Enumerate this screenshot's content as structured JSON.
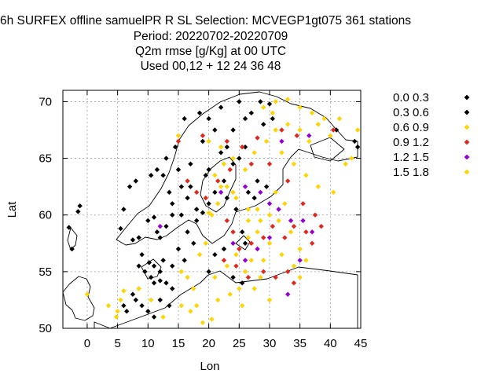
{
  "title": {
    "line1": "6h SURFEX offline samuelPR R SL   Selection: MCVEGP1gt075    361 stations",
    "line2": "Period: 20220702-20220709",
    "line3": "Q2m rmse [g/Kg] at  00 UTC",
    "line4": "Used  00,12  + 12 24 36 48"
  },
  "chart_data": {
    "type": "scatter",
    "xlabel": "Lon",
    "ylabel": "Lat",
    "xlim": [
      -4,
      45
    ],
    "ylim": [
      50,
      71
    ],
    "xticks": [
      0,
      5,
      10,
      15,
      20,
      25,
      30,
      35,
      40,
      45
    ],
    "yticks": [
      50,
      55,
      60,
      65,
      70
    ],
    "grid": true,
    "legend_position": "top-right",
    "series": [
      {
        "name": "0.0 0.3",
        "color": "#000000",
        "points": [
          [
            -3.0,
            58.9
          ],
          [
            -1.5,
            60.3
          ],
          [
            -1.2,
            60.8
          ],
          [
            -2.5,
            57.0
          ],
          [
            5.5,
            58.8
          ],
          [
            6.0,
            60.5
          ],
          [
            7.0,
            62.5
          ],
          [
            8.0,
            63.0
          ],
          [
            10.5,
            63.5
          ],
          [
            11.5,
            64.0
          ],
          [
            13.0,
            65.0
          ],
          [
            14.5,
            66.0
          ],
          [
            16.0,
            68.5
          ],
          [
            18.5,
            69.0
          ],
          [
            20.0,
            68.5
          ],
          [
            22.0,
            69.5
          ],
          [
            25.0,
            70.0
          ],
          [
            28.5,
            70.0
          ],
          [
            30.0,
            69.8
          ],
          [
            41.0,
            67.5
          ],
          [
            44.0,
            66.5
          ],
          [
            44.5,
            66.0
          ],
          [
            8.5,
            58.0
          ],
          [
            10.0,
            59.5
          ],
          [
            11.0,
            59.8
          ],
          [
            11.5,
            58.5
          ],
          [
            12.5,
            56.0
          ],
          [
            9.0,
            56.5
          ],
          [
            8.5,
            55.5
          ],
          [
            9.5,
            55.0
          ],
          [
            10.5,
            54.5
          ],
          [
            11.0,
            54.0
          ],
          [
            12.0,
            54.2
          ],
          [
            13.0,
            54.0
          ],
          [
            14.0,
            53.5
          ],
          [
            7.5,
            53.0
          ],
          [
            8.0,
            52.5
          ],
          [
            9.0,
            52.0
          ],
          [
            10.0,
            51.5
          ],
          [
            11.0,
            51.0
          ],
          [
            6.0,
            52.0
          ],
          [
            6.5,
            51.5
          ],
          [
            12.0,
            52.5
          ],
          [
            13.5,
            52.0
          ],
          [
            16.0,
            56.0
          ],
          [
            17.5,
            57.5
          ],
          [
            15.5,
            60.0
          ],
          [
            14.0,
            61.0
          ],
          [
            16.5,
            61.5
          ],
          [
            17.0,
            62.5
          ],
          [
            19.5,
            63.5
          ],
          [
            20.0,
            64.0
          ],
          [
            22.0,
            65.5
          ],
          [
            18.0,
            59.5
          ],
          [
            19.0,
            60.2
          ],
          [
            23.0,
            66.0
          ],
          [
            24.0,
            67.5
          ],
          [
            26.0,
            68.5
          ],
          [
            27.0,
            69.0
          ],
          [
            13.5,
            62.0
          ],
          [
            12.5,
            63.5
          ],
          [
            15.0,
            64.0
          ]
        ]
      },
      {
        "name": "0.3 0.6",
        "color": "#000000",
        "points": [
          [
            7.5,
            57.8
          ],
          [
            10.2,
            55.8
          ],
          [
            11.0,
            55.5
          ],
          [
            12.0,
            55.0
          ],
          [
            14.0,
            55.5
          ],
          [
            15.0,
            57.0
          ],
          [
            16.5,
            58.5
          ],
          [
            18.0,
            60.5
          ],
          [
            20.0,
            61.0
          ],
          [
            21.0,
            62.0
          ],
          [
            22.5,
            63.0
          ],
          [
            24.0,
            64.5
          ],
          [
            25.0,
            65.0
          ],
          [
            26.0,
            66.0
          ],
          [
            29.0,
            68.0
          ],
          [
            30.5,
            68.5
          ],
          [
            12.0,
            58.0
          ],
          [
            13.0,
            59.0
          ],
          [
            14.0,
            60.0
          ],
          [
            15.5,
            62.5
          ],
          [
            17.0,
            64.5
          ],
          [
            19.0,
            66.5
          ],
          [
            21.0,
            67.5
          ],
          [
            26.5,
            62.0
          ],
          [
            27.5,
            61.5
          ],
          [
            28.0,
            63.0
          ],
          [
            29.5,
            62.5
          ],
          [
            24.5,
            60.5
          ],
          [
            23.0,
            61.5
          ],
          [
            25.5,
            58.5
          ],
          [
            26.0,
            57.5
          ],
          [
            22.5,
            57.0
          ],
          [
            21.0,
            56.5
          ],
          [
            20.0,
            55.0
          ],
          [
            24.0,
            54.5
          ],
          [
            25.5,
            54.0
          ]
        ]
      },
      {
        "name": "0.6 0.9",
        "color": "#ffd400",
        "points": [
          [
            0.0,
            53.0
          ],
          [
            5.0,
            51.5
          ],
          [
            5.5,
            52.5
          ],
          [
            6.0,
            53.3
          ],
          [
            10.5,
            52.5
          ],
          [
            12.5,
            51.0
          ],
          [
            15.5,
            52.0
          ],
          [
            17.0,
            51.5
          ],
          [
            19.0,
            50.5
          ],
          [
            20.5,
            50.8
          ],
          [
            15.0,
            67.0
          ],
          [
            20.0,
            66.5
          ],
          [
            22.0,
            66.0
          ],
          [
            24.0,
            65.0
          ],
          [
            26.0,
            64.0
          ],
          [
            27.5,
            65.5
          ],
          [
            29.5,
            66.5
          ],
          [
            31.0,
            67.5
          ],
          [
            33.0,
            68.0
          ],
          [
            35.0,
            67.5
          ],
          [
            36.5,
            66.5
          ],
          [
            38.0,
            68.0
          ],
          [
            40.0,
            67.0
          ],
          [
            42.5,
            64.5
          ],
          [
            43.5,
            65.0
          ],
          [
            44.5,
            67.5
          ],
          [
            29.0,
            69.5
          ],
          [
            30.5,
            69.0
          ],
          [
            32.0,
            65.5
          ],
          [
            34.0,
            64.5
          ],
          [
            36.0,
            63.5
          ],
          [
            38.0,
            62.5
          ],
          [
            40.5,
            62.0
          ],
          [
            31.0,
            62.0
          ],
          [
            32.5,
            61.0
          ],
          [
            28.0,
            60.5
          ],
          [
            30.0,
            60.0
          ],
          [
            26.5,
            59.5
          ],
          [
            28.0,
            58.5
          ],
          [
            30.0,
            57.5
          ],
          [
            32.0,
            56.5
          ],
          [
            34.0,
            55.5
          ],
          [
            35.0,
            54.5
          ],
          [
            27.0,
            56.0
          ],
          [
            26.0,
            55.0
          ],
          [
            28.5,
            54.5
          ],
          [
            25.0,
            53.5
          ],
          [
            23.5,
            53.0
          ],
          [
            21.5,
            52.5
          ],
          [
            22.0,
            62.5
          ],
          [
            21.5,
            61.0
          ],
          [
            20.0,
            60.2
          ],
          [
            19.5,
            57.5
          ],
          [
            18.5,
            56.5
          ],
          [
            15.5,
            55.0
          ],
          [
            16.5,
            54.5
          ],
          [
            17.5,
            53.5
          ]
        ]
      },
      {
        "name": "0.9 1.2",
        "color": "#e0281e",
        "points": [
          [
            15.0,
            66.5
          ],
          [
            19.0,
            67.0
          ],
          [
            23.0,
            66.5
          ],
          [
            25.5,
            66.0
          ],
          [
            28.0,
            66.8
          ],
          [
            32.0,
            67.5
          ],
          [
            34.5,
            67.0
          ],
          [
            40.5,
            67.5
          ],
          [
            16.5,
            63.0
          ],
          [
            18.0,
            62.0
          ],
          [
            19.5,
            61.5
          ],
          [
            21.5,
            63.0
          ],
          [
            23.5,
            64.0
          ],
          [
            27.0,
            64.5
          ],
          [
            30.0,
            64.5
          ],
          [
            33.0,
            63.0
          ],
          [
            35.5,
            61.0
          ],
          [
            37.5,
            60.0
          ],
          [
            38.5,
            59.0
          ],
          [
            36.0,
            58.5
          ],
          [
            34.0,
            59.0
          ],
          [
            32.5,
            58.0
          ],
          [
            30.5,
            59.0
          ],
          [
            29.0,
            58.0
          ],
          [
            27.0,
            57.5
          ],
          [
            25.0,
            57.0
          ],
          [
            24.0,
            58.5
          ],
          [
            23.0,
            59.5
          ],
          [
            22.5,
            56.0
          ],
          [
            24.5,
            55.5
          ],
          [
            26.5,
            54.5
          ],
          [
            29.0,
            55.0
          ],
          [
            31.0,
            54.5
          ],
          [
            33.0,
            55.0
          ],
          [
            34.0,
            54.0
          ],
          [
            37.0,
            57.5
          ]
        ]
      },
      {
        "name": "1.2 1.5",
        "color": "#9400d3",
        "points": [
          [
            12.0,
            59.0
          ],
          [
            22.0,
            62.0
          ],
          [
            26.0,
            62.5
          ],
          [
            28.5,
            62.0
          ],
          [
            30.0,
            61.0
          ],
          [
            31.5,
            60.5
          ],
          [
            33.5,
            59.5
          ],
          [
            35.5,
            59.5
          ],
          [
            37.0,
            58.5
          ],
          [
            30.0,
            58.0
          ],
          [
            28.0,
            57.0
          ],
          [
            24.0,
            57.5
          ],
          [
            26.0,
            56.0
          ],
          [
            35.0,
            56.0
          ],
          [
            33.0,
            53.0
          ],
          [
            36.5,
            67.0
          ],
          [
            32.0,
            66.5
          ]
        ]
      },
      {
        "name": "1.5 1.8",
        "color": "#ffd400",
        "points": [
          [
            4.8,
            51.0
          ],
          [
            3.5,
            52.0
          ],
          [
            8.5,
            53.5
          ],
          [
            18.0,
            52.0
          ],
          [
            21.0,
            54.5
          ],
          [
            23.0,
            55.5
          ],
          [
            24.5,
            56.5
          ],
          [
            26.5,
            58.0
          ],
          [
            28.5,
            59.5
          ],
          [
            31.5,
            59.5
          ],
          [
            33.5,
            58.5
          ],
          [
            35.0,
            57.0
          ],
          [
            36.0,
            56.0
          ],
          [
            29.0,
            56.0
          ],
          [
            27.5,
            53.5
          ],
          [
            25.5,
            52.0
          ],
          [
            30.0,
            52.5
          ],
          [
            26.5,
            60.5
          ],
          [
            24.5,
            61.5
          ],
          [
            23.0,
            62.5
          ],
          [
            21.0,
            63.5
          ],
          [
            22.5,
            64.5
          ],
          [
            24.0,
            62.0
          ],
          [
            20.5,
            60.0
          ],
          [
            31.0,
            70.0
          ],
          [
            33.0,
            70.2
          ],
          [
            35.0,
            69.5
          ],
          [
            37.0,
            69.0
          ],
          [
            39.0,
            68.5
          ],
          [
            41.5,
            68.5
          ]
        ]
      }
    ]
  }
}
